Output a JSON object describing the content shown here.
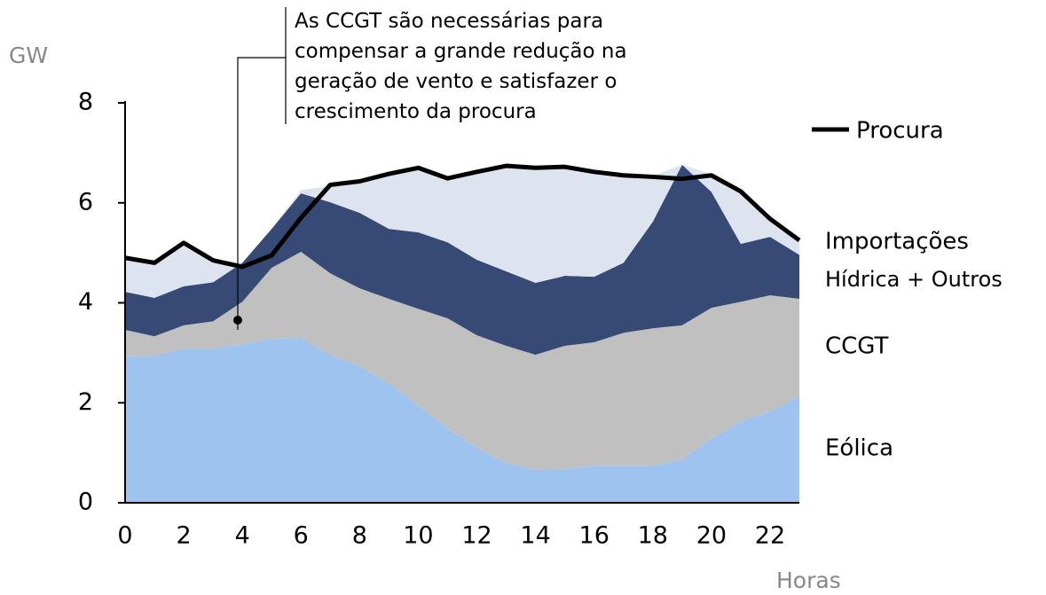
{
  "chart_data": {
    "type": "stacked_area_line",
    "annotation": [
      "As CCGT são necessárias para",
      "compensar a grande redução na",
      "geração de vento e satisfazer o",
      "crescimento da procura"
    ],
    "ylabel": "GW",
    "xlabel": "Horas",
    "x": [
      0,
      1,
      2,
      3,
      4,
      5,
      6,
      7,
      8,
      9,
      10,
      11,
      12,
      13,
      14,
      15,
      16,
      17,
      18,
      19,
      20,
      21,
      22,
      23
    ],
    "xlim": [
      0,
      23
    ],
    "xticks": [
      0,
      2,
      4,
      6,
      8,
      10,
      12,
      14,
      16,
      18,
      20,
      22
    ],
    "ylim": [
      0,
      8
    ],
    "yticks": [
      0,
      2,
      4,
      6,
      8
    ],
    "series": [
      {
        "name": "Eólica",
        "color": "#9dc3ee",
        "values": [
          2.93,
          2.94,
          3.08,
          3.08,
          3.17,
          3.28,
          3.3,
          2.96,
          2.73,
          2.39,
          1.95,
          1.49,
          1.1,
          0.8,
          0.66,
          0.67,
          0.74,
          0.74,
          0.74,
          0.87,
          1.28,
          1.63,
          1.83,
          2.13
        ]
      },
      {
        "name": "CCGT",
        "color": "#c0c0c0",
        "values": [
          0.53,
          0.39,
          0.47,
          0.55,
          0.85,
          1.42,
          1.72,
          1.63,
          1.56,
          1.69,
          1.93,
          2.2,
          2.25,
          2.34,
          2.3,
          2.47,
          2.47,
          2.66,
          2.75,
          2.68,
          2.62,
          2.39,
          2.32,
          1.95
        ]
      },
      {
        "name": "Hídrica + Outros",
        "color": "#374a76",
        "values": [
          0.76,
          0.77,
          0.78,
          0.78,
          0.78,
          0.78,
          1.17,
          1.42,
          1.51,
          1.4,
          1.53,
          1.52,
          1.51,
          1.49,
          1.44,
          1.4,
          1.31,
          1.4,
          2.13,
          3.21,
          2.32,
          1.16,
          1.17,
          0.88
        ]
      },
      {
        "name": "Importações",
        "color": "#dde3ef",
        "values": [
          0.69,
          0.7,
          0.9,
          0.45,
          0,
          0,
          0.07,
          0.32,
          0.62,
          1.1,
          1.31,
          1.3,
          1.75,
          2.13,
          2.32,
          2.2,
          2.11,
          1.76,
          0.92,
          0,
          0.36,
          1.06,
          0.39,
          0.31
        ]
      }
    ],
    "line": {
      "name": "Procura",
      "color": "#000000",
      "values": [
        4.9,
        4.8,
        5.2,
        4.85,
        4.72,
        4.95,
        5.7,
        6.36,
        6.43,
        6.58,
        6.7,
        6.49,
        6.62,
        6.74,
        6.7,
        6.72,
        6.62,
        6.55,
        6.52,
        6.48,
        6.55,
        6.23,
        5.68,
        5.25
      ]
    }
  }
}
